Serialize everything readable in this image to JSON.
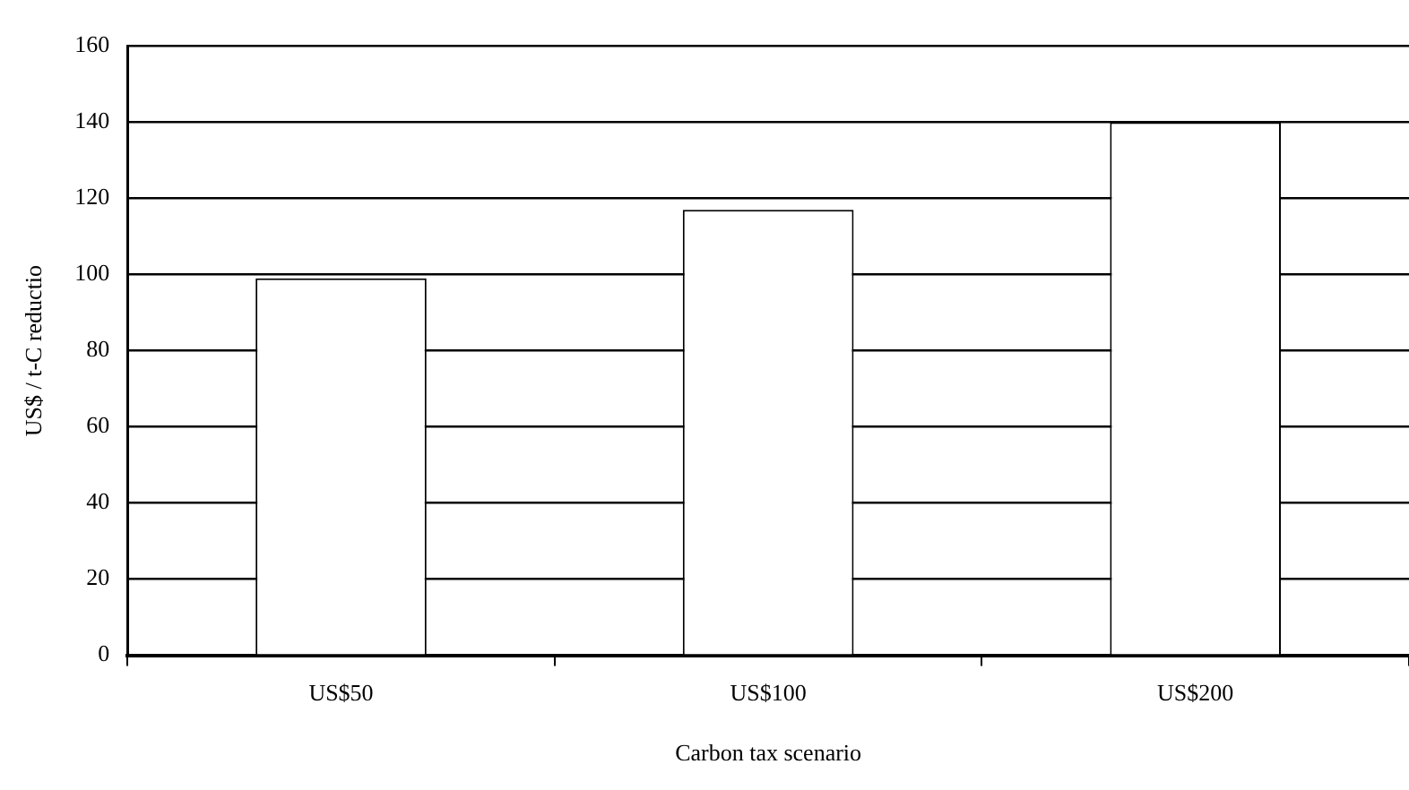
{
  "chart_data": {
    "type": "bar",
    "xlabel": "Carbon tax scenario",
    "ylabel": "US$ / t-C reductio",
    "categories": [
      "US$50",
      "US$100",
      "US$200"
    ],
    "values": [
      99,
      117,
      140
    ],
    "color": "#ffffff",
    "ylim": [
      0,
      160
    ],
    "yticks": [
      0,
      20,
      40,
      60,
      80,
      100,
      120,
      140,
      160
    ],
    "grid": "y",
    "legend": false
  }
}
